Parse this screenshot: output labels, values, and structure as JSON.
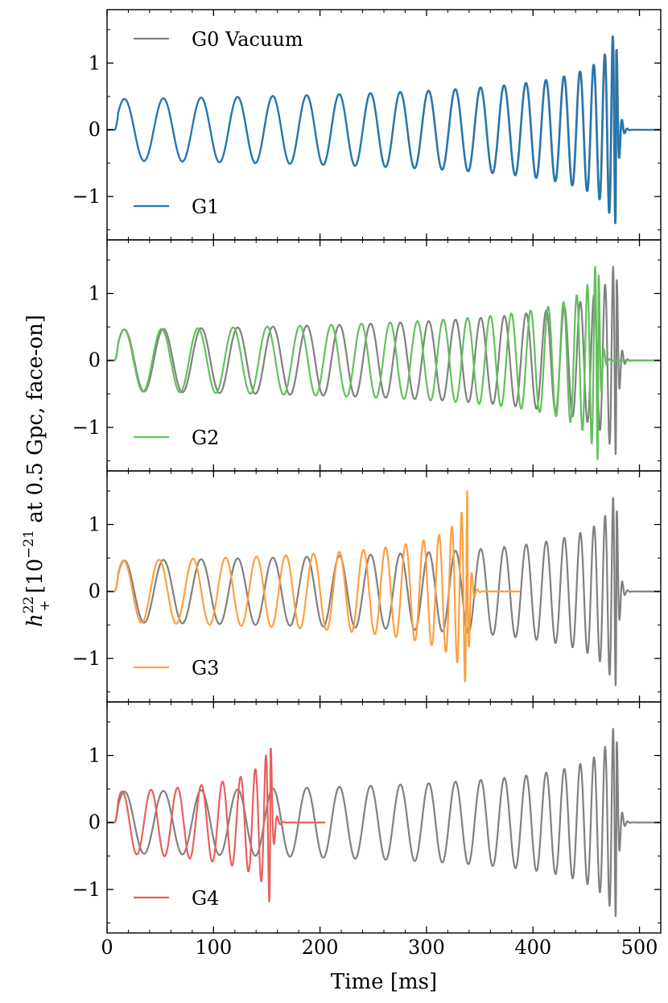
{
  "chart_data": {
    "type": "line",
    "layout": "4 vertically stacked panels sharing x axis",
    "xlabel": "Time [ms]",
    "ylabel": "h_+^{22} [10^{-21} at 0.5 Gpc, face-on]",
    "ylabel_parts": {
      "symbol": "h",
      "superscript": "22",
      "subscript": "+",
      "bracket_open": " [10",
      "exponent": "−21",
      "rest": " at 0.5 Gpc, face-on]"
    },
    "xlim": [
      0,
      520
    ],
    "ylim": [
      -1.65,
      1.8
    ],
    "xticks": [
      0,
      100,
      200,
      300,
      400,
      500
    ],
    "xtick_labels": [
      "0",
      "100",
      "200",
      "300",
      "400",
      "500"
    ],
    "yticks": [
      -1,
      0,
      1
    ],
    "ytick_labels": [
      "−1",
      "0",
      "1"
    ],
    "grid": false,
    "legend_placement": "left (upper and lower entries)",
    "colors": {
      "G0": "#808080",
      "G1": "#1f77b4",
      "G2": "#62c05c",
      "G3": "#ff9f40",
      "G4": "#e8605c"
    },
    "panels": [
      {
        "legend": [
          "G0 Vacuum",
          "G1"
        ],
        "series": [
          {
            "name": "G0 Vacuum",
            "color": "#808080",
            "t_start": 7,
            "t_merger": 478.5,
            "amp_start": 0.46,
            "peak_amp": 1.4,
            "n_cycles": 20.15
          },
          {
            "name": "G1",
            "color": "#1f77b4",
            "t_start": 7,
            "t_merger": 478,
            "amp_start": 0.46,
            "peak_amp": 1.4,
            "n_cycles": 20.15
          }
        ]
      },
      {
        "legend": [
          "G2"
        ],
        "series": [
          {
            "name": "G0 Vacuum",
            "color": "#808080",
            "t_start": 7,
            "t_merger": 478.5,
            "amp_start": 0.46,
            "peak_amp": 1.4,
            "n_cycles": 20.15
          },
          {
            "name": "G2",
            "color": "#62c05c",
            "t_start": 7,
            "t_merger": 461.5,
            "amp_start": 0.46,
            "peak_amp": 1.48,
            "n_cycles": 20.15
          }
        ]
      },
      {
        "legend": [
          "G3"
        ],
        "series": [
          {
            "name": "G0 Vacuum",
            "color": "#808080",
            "t_start": 7,
            "t_merger": 478.5,
            "amp_start": 0.46,
            "peak_amp": 1.4,
            "n_cycles": 20.15
          },
          {
            "name": "G3",
            "color": "#ff9f40",
            "t_start": 7,
            "t_merger": 338.5,
            "amp_start": 0.46,
            "peak_amp": 1.5,
            "n_cycles": 15.45,
            "t_end": 388
          }
        ]
      },
      {
        "legend": [
          "G4"
        ],
        "series": [
          {
            "name": "G0 Vacuum",
            "color": "#808080",
            "t_start": 7,
            "t_merger": 478.5,
            "amp_start": 0.46,
            "peak_amp": 1.4,
            "n_cycles": 20.15
          },
          {
            "name": "G4",
            "color": "#e8605c",
            "t_start": 7,
            "t_merger": 153.5,
            "amp_start": 0.46,
            "peak_amp": 1.55,
            "n_cycles": 8.15,
            "t_end": 205
          }
        ]
      }
    ]
  }
}
